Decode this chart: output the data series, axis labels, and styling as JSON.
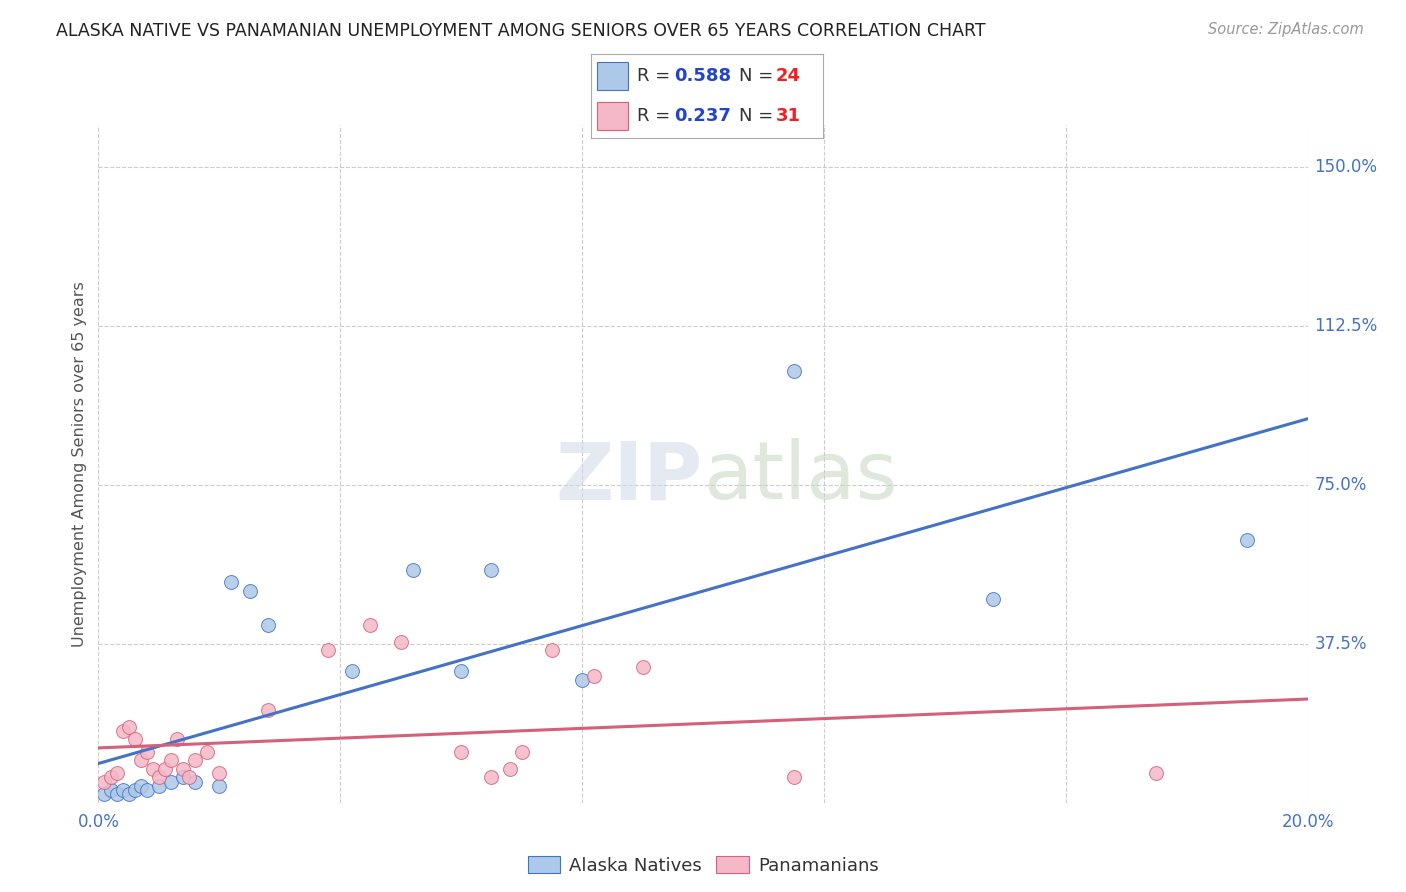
{
  "title": "ALASKA NATIVE VS PANAMANIAN UNEMPLOYMENT AMONG SENIORS OVER 65 YEARS CORRELATION CHART",
  "source": "Source: ZipAtlas.com",
  "ylabel": "Unemployment Among Seniors over 65 years",
  "xlim": [
    0.0,
    0.2
  ],
  "ylim": [
    0.0,
    1.6
  ],
  "xticks": [
    0.0,
    0.04,
    0.08,
    0.12,
    0.16,
    0.2
  ],
  "ytick_labels_right": [
    "",
    "37.5%",
    "75.0%",
    "112.5%",
    "150.0%"
  ],
  "yticks_right": [
    0.0,
    0.375,
    0.75,
    1.125,
    1.5
  ],
  "alaska_color": "#adc8e8",
  "alaska_line_color": "#4472c4",
  "panama_color": "#f4b8c8",
  "panama_line_color": "#d4607a",
  "alaska_R": 0.588,
  "alaska_N": 24,
  "panama_R": 0.237,
  "panama_N": 31,
  "alaska_scatter_x": [
    0.001,
    0.002,
    0.003,
    0.004,
    0.005,
    0.006,
    0.007,
    0.008,
    0.01,
    0.012,
    0.014,
    0.016,
    0.02,
    0.022,
    0.042,
    0.052,
    0.06,
    0.065,
    0.08,
    0.115,
    0.148,
    0.19,
    0.025,
    0.028
  ],
  "alaska_scatter_y": [
    0.02,
    0.03,
    0.02,
    0.03,
    0.02,
    0.03,
    0.04,
    0.03,
    0.04,
    0.05,
    0.06,
    0.05,
    0.04,
    0.52,
    0.31,
    0.55,
    0.31,
    0.55,
    0.29,
    1.02,
    0.48,
    0.62,
    0.5,
    0.42
  ],
  "panama_scatter_x": [
    0.001,
    0.002,
    0.003,
    0.004,
    0.005,
    0.006,
    0.007,
    0.008,
    0.009,
    0.01,
    0.011,
    0.012,
    0.013,
    0.014,
    0.015,
    0.016,
    0.018,
    0.02,
    0.028,
    0.038,
    0.045,
    0.05,
    0.06,
    0.065,
    0.068,
    0.07,
    0.075,
    0.082,
    0.09,
    0.115,
    0.175
  ],
  "panama_scatter_y": [
    0.05,
    0.06,
    0.07,
    0.17,
    0.18,
    0.15,
    0.1,
    0.12,
    0.08,
    0.06,
    0.08,
    0.1,
    0.15,
    0.08,
    0.06,
    0.1,
    0.12,
    0.07,
    0.22,
    0.36,
    0.42,
    0.38,
    0.12,
    0.06,
    0.08,
    0.12,
    0.36,
    0.3,
    0.32,
    0.06,
    0.07
  ],
  "background_color": "#ffffff",
  "grid_color": "#cccccc",
  "title_color": "#222222",
  "source_color": "#999999",
  "ylabel_color": "#555555",
  "legend_R_color": "#2244cc",
  "legend_N_color": "#ee2222"
}
